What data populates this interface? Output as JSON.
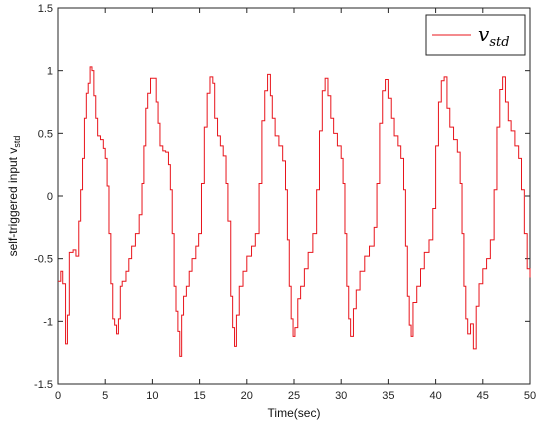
{
  "chart_data": {
    "type": "line",
    "title": "",
    "xlabel": "Time(sec)",
    "ylabel": "self-triggered input v",
    "ylabel_sub": "std",
    "xlim": [
      0,
      50
    ],
    "ylim": [
      -1.5,
      1.5
    ],
    "xticks": [
      "0",
      "5",
      "10",
      "15",
      "20",
      "25",
      "30",
      "35",
      "40",
      "45",
      "50"
    ],
    "yticks": [
      "-1.5",
      "-1",
      "-0.5",
      "0",
      "0.5",
      "1",
      "1.5"
    ],
    "grid": false,
    "legend_position": "top-right",
    "color": "#e8141b",
    "series": [
      {
        "name": "v",
        "name_sub": "std",
        "points": [
          [
            0.0,
            -0.68
          ],
          [
            0.3,
            -0.6
          ],
          [
            0.5,
            -0.7
          ],
          [
            0.8,
            -1.18
          ],
          [
            1.0,
            -0.95
          ],
          [
            1.2,
            -0.45
          ],
          [
            1.6,
            -0.43
          ],
          [
            1.9,
            -0.48
          ],
          [
            2.2,
            -0.2
          ],
          [
            2.4,
            0.05
          ],
          [
            2.6,
            0.3
          ],
          [
            2.8,
            0.62
          ],
          [
            3.0,
            0.82
          ],
          [
            3.2,
            0.9
          ],
          [
            3.4,
            1.03
          ],
          [
            3.6,
            1.0
          ],
          [
            3.8,
            0.8
          ],
          [
            4.0,
            0.62
          ],
          [
            4.2,
            0.48
          ],
          [
            4.5,
            0.45
          ],
          [
            4.8,
            0.38
          ],
          [
            5.0,
            0.3
          ],
          [
            5.2,
            0.08
          ],
          [
            5.4,
            -0.3
          ],
          [
            5.6,
            -0.7
          ],
          [
            5.8,
            -0.98
          ],
          [
            6.0,
            -1.03
          ],
          [
            6.2,
            -1.1
          ],
          [
            6.4,
            -0.98
          ],
          [
            6.6,
            -0.72
          ],
          [
            6.8,
            -0.68
          ],
          [
            7.2,
            -0.6
          ],
          [
            7.5,
            -0.5
          ],
          [
            7.8,
            -0.4
          ],
          [
            8.2,
            -0.3
          ],
          [
            8.6,
            -0.15
          ],
          [
            8.9,
            0.1
          ],
          [
            9.1,
            0.4
          ],
          [
            9.3,
            0.7
          ],
          [
            9.5,
            0.82
          ],
          [
            9.8,
            0.94
          ],
          [
            10.2,
            0.94
          ],
          [
            10.4,
            0.75
          ],
          [
            10.6,
            0.58
          ],
          [
            10.8,
            0.4
          ],
          [
            11.1,
            0.36
          ],
          [
            11.4,
            0.35
          ],
          [
            11.7,
            0.25
          ],
          [
            11.9,
            0.05
          ],
          [
            12.1,
            -0.3
          ],
          [
            12.3,
            -0.72
          ],
          [
            12.5,
            -0.92
          ],
          [
            12.7,
            -1.08
          ],
          [
            12.9,
            -1.28
          ],
          [
            13.1,
            -0.95
          ],
          [
            13.3,
            -0.8
          ],
          [
            13.6,
            -0.72
          ],
          [
            13.9,
            -0.6
          ],
          [
            14.2,
            -0.5
          ],
          [
            14.6,
            -0.4
          ],
          [
            14.9,
            -0.3
          ],
          [
            15.2,
            0.1
          ],
          [
            15.5,
            0.55
          ],
          [
            15.8,
            0.82
          ],
          [
            16.1,
            0.95
          ],
          [
            16.4,
            0.9
          ],
          [
            16.6,
            0.62
          ],
          [
            16.9,
            0.48
          ],
          [
            17.2,
            0.4
          ],
          [
            17.5,
            0.32
          ],
          [
            17.8,
            0.1
          ],
          [
            18.0,
            -0.2
          ],
          [
            18.3,
            -0.8
          ],
          [
            18.5,
            -1.05
          ],
          [
            18.7,
            -1.2
          ],
          [
            18.9,
            -0.95
          ],
          [
            19.2,
            -0.72
          ],
          [
            19.6,
            -0.6
          ],
          [
            20.0,
            -0.48
          ],
          [
            20.5,
            -0.4
          ],
          [
            20.9,
            -0.3
          ],
          [
            21.3,
            0.1
          ],
          [
            21.6,
            0.6
          ],
          [
            21.9,
            0.84
          ],
          [
            22.2,
            0.97
          ],
          [
            22.5,
            0.8
          ],
          [
            22.7,
            0.62
          ],
          [
            23.0,
            0.48
          ],
          [
            23.4,
            0.4
          ],
          [
            23.8,
            0.28
          ],
          [
            24.1,
            0.05
          ],
          [
            24.3,
            -0.35
          ],
          [
            24.5,
            -0.72
          ],
          [
            24.7,
            -0.98
          ],
          [
            24.9,
            -1.12
          ],
          [
            25.1,
            -1.05
          ],
          [
            25.4,
            -0.82
          ],
          [
            25.7,
            -0.72
          ],
          [
            26.1,
            -0.58
          ],
          [
            26.5,
            -0.45
          ],
          [
            27.0,
            -0.3
          ],
          [
            27.4,
            0.05
          ],
          [
            27.7,
            0.52
          ],
          [
            28.0,
            0.84
          ],
          [
            28.3,
            0.94
          ],
          [
            28.6,
            0.8
          ],
          [
            28.9,
            0.62
          ],
          [
            29.2,
            0.5
          ],
          [
            29.6,
            0.4
          ],
          [
            30.0,
            0.3
          ],
          [
            30.2,
            0.1
          ],
          [
            30.4,
            -0.3
          ],
          [
            30.6,
            -0.72
          ],
          [
            30.8,
            -0.98
          ],
          [
            31.0,
            -1.12
          ],
          [
            31.3,
            -0.9
          ],
          [
            31.6,
            -0.75
          ],
          [
            32.0,
            -0.6
          ],
          [
            32.5,
            -0.48
          ],
          [
            33.0,
            -0.4
          ],
          [
            33.5,
            -0.25
          ],
          [
            33.8,
            0.1
          ],
          [
            34.1,
            0.58
          ],
          [
            34.4,
            0.84
          ],
          [
            34.7,
            0.93
          ],
          [
            35.0,
            0.78
          ],
          [
            35.3,
            0.62
          ],
          [
            35.6,
            0.48
          ],
          [
            36.0,
            0.4
          ],
          [
            36.3,
            0.3
          ],
          [
            36.6,
            0.05
          ],
          [
            36.8,
            -0.4
          ],
          [
            37.0,
            -0.8
          ],
          [
            37.2,
            -1.03
          ],
          [
            37.4,
            -1.12
          ],
          [
            37.6,
            -0.85
          ],
          [
            38.0,
            -0.72
          ],
          [
            38.4,
            -0.58
          ],
          [
            38.8,
            -0.45
          ],
          [
            39.3,
            -0.35
          ],
          [
            39.7,
            -0.1
          ],
          [
            40.0,
            0.4
          ],
          [
            40.3,
            0.75
          ],
          [
            40.6,
            0.92
          ],
          [
            40.9,
            0.95
          ],
          [
            41.2,
            0.7
          ],
          [
            41.5,
            0.55
          ],
          [
            41.9,
            0.45
          ],
          [
            42.3,
            0.35
          ],
          [
            42.6,
            0.1
          ],
          [
            42.8,
            -0.3
          ],
          [
            43.0,
            -0.72
          ],
          [
            43.2,
            -0.98
          ],
          [
            43.4,
            -1.1
          ],
          [
            43.7,
            -1.02
          ],
          [
            44.0,
            -1.22
          ],
          [
            44.3,
            -0.88
          ],
          [
            44.6,
            -0.7
          ],
          [
            45.0,
            -0.58
          ],
          [
            45.4,
            -0.5
          ],
          [
            45.8,
            -0.35
          ],
          [
            46.2,
            0.05
          ],
          [
            46.5,
            0.55
          ],
          [
            46.8,
            0.85
          ],
          [
            47.1,
            0.95
          ],
          [
            47.4,
            0.75
          ],
          [
            47.7,
            0.6
          ],
          [
            48.0,
            0.52
          ],
          [
            48.4,
            0.4
          ],
          [
            48.8,
            0.3
          ],
          [
            49.1,
            0.05
          ],
          [
            49.4,
            -0.3
          ],
          [
            49.7,
            -0.58
          ],
          [
            50.0,
            -0.65
          ]
        ]
      }
    ]
  }
}
